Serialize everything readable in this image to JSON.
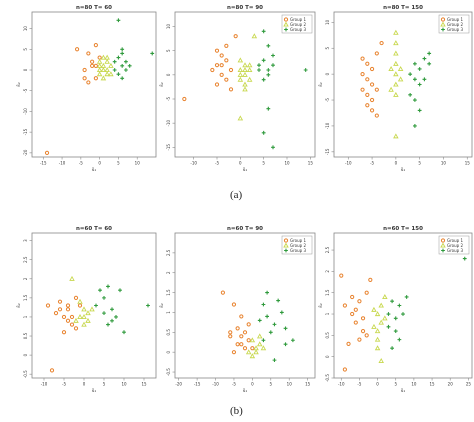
{
  "colors": {
    "group1": "#e8832f",
    "group2": "#c8d84e",
    "group3": "#2f9a3c",
    "frame": "#888888",
    "text": "#333333"
  },
  "captions": {
    "a": "(a)",
    "b": "(b)"
  },
  "legend_labels": [
    "Group 1",
    "Group 2",
    "Group 3"
  ],
  "chart_data": [
    {
      "type": "scatter",
      "title": "n=80 T= 60",
      "xlabel": "ŝ₁",
      "ylabel": "ŝ₂",
      "xlim": [
        -18,
        15
      ],
      "ylim": [
        -21,
        14
      ],
      "xticks": [
        -15,
        -10,
        -5,
        0,
        5,
        10
      ],
      "yticks": [
        -20,
        -15,
        -10,
        -5,
        0,
        5,
        10
      ],
      "legend": "none",
      "series": [
        {
          "name": "Group 1",
          "points": [
            [
              -6,
              5
            ],
            [
              -3,
              4
            ],
            [
              -1,
              6
            ],
            [
              -2,
              2
            ],
            [
              -4,
              0
            ],
            [
              -4,
              -2
            ],
            [
              -1,
              -2
            ],
            [
              -2,
              1
            ],
            [
              0,
              3
            ],
            [
              -3,
              -3
            ],
            [
              -1,
              1
            ],
            [
              -14,
              -20
            ]
          ]
        },
        {
          "name": "Group 2",
          "points": [
            [
              0,
              2
            ],
            [
              0,
              0
            ],
            [
              0,
              -1
            ],
            [
              1,
              3
            ],
            [
              1,
              1
            ],
            [
              2,
              0
            ],
            [
              2,
              -1
            ],
            [
              1,
              -2
            ],
            [
              2,
              2
            ],
            [
              3,
              1
            ],
            [
              1,
              0
            ],
            [
              0,
              1
            ],
            [
              3,
              -1
            ],
            [
              2,
              3
            ]
          ]
        },
        {
          "name": "Group 3",
          "points": [
            [
              4,
              2
            ],
            [
              5,
              3
            ],
            [
              6,
              1
            ],
            [
              7,
              2
            ],
            [
              5,
              -1
            ],
            [
              6,
              -2
            ],
            [
              7,
              0
            ],
            [
              8,
              1
            ],
            [
              4,
              0
            ],
            [
              6,
              4
            ],
            [
              5,
              12
            ],
            [
              14,
              4
            ],
            [
              6,
              5
            ]
          ]
        }
      ]
    },
    {
      "type": "scatter",
      "title": "n=80 T= 90",
      "xlabel": "ŝ₁",
      "ylabel": "ŝ₂",
      "xlim": [
        -14,
        16
      ],
      "ylim": [
        -17,
        13
      ],
      "xticks": [
        -10,
        -5,
        0,
        5,
        10,
        15
      ],
      "yticks": [
        -15,
        -10,
        -5,
        0,
        5,
        10
      ],
      "legend": "top-right",
      "series": [
        {
          "name": "Group 1",
          "points": [
            [
              -5,
              5
            ],
            [
              -4,
              4
            ],
            [
              -3,
              3
            ],
            [
              -5,
              2
            ],
            [
              -6,
              1
            ],
            [
              -4,
              0
            ],
            [
              -2,
              1
            ],
            [
              -3,
              -1
            ],
            [
              -5,
              -2
            ],
            [
              -2,
              -3
            ],
            [
              -3,
              6
            ],
            [
              -12,
              -5
            ],
            [
              -1,
              8
            ],
            [
              -4,
              2
            ]
          ]
        },
        {
          "name": "Group 2",
          "points": [
            [
              0,
              1
            ],
            [
              1,
              0
            ],
            [
              0,
              -1
            ],
            [
              1,
              2
            ],
            [
              2,
              1
            ],
            [
              1,
              -2
            ],
            [
              0,
              3
            ],
            [
              2,
              -1
            ],
            [
              1,
              1
            ],
            [
              0,
              0
            ],
            [
              2,
              2
            ],
            [
              1,
              -3
            ],
            [
              3,
              8
            ],
            [
              0,
              -9
            ]
          ]
        },
        {
          "name": "Group 3",
          "points": [
            [
              4,
              2
            ],
            [
              5,
              3
            ],
            [
              6,
              1
            ],
            [
              7,
              2
            ],
            [
              5,
              -1
            ],
            [
              6,
              0
            ],
            [
              4,
              1
            ],
            [
              7,
              4
            ],
            [
              6,
              6
            ],
            [
              5,
              9
            ],
            [
              14,
              1
            ],
            [
              7,
              -15
            ],
            [
              5,
              -12
            ],
            [
              6,
              -7
            ]
          ]
        }
      ]
    },
    {
      "type": "scatter",
      "title": "n=80 T= 150",
      "xlabel": "ŝ₁",
      "ylabel": "ŝ₂",
      "xlim": [
        -13,
        16
      ],
      "ylim": [
        -16,
        12
      ],
      "xticks": [
        -10,
        -5,
        0,
        5,
        10,
        15
      ],
      "yticks": [
        -15,
        -10,
        -5,
        0,
        5,
        10
      ],
      "legend": "top-right",
      "series": [
        {
          "name": "Group 1",
          "points": [
            [
              -7,
              3
            ],
            [
              -6,
              2
            ],
            [
              -5,
              1
            ],
            [
              -7,
              0
            ],
            [
              -6,
              -1
            ],
            [
              -5,
              -2
            ],
            [
              -4,
              -3
            ],
            [
              -6,
              -4
            ],
            [
              -5,
              -5
            ],
            [
              -7,
              -3
            ],
            [
              -4,
              4
            ],
            [
              -5,
              -7
            ],
            [
              -4,
              -8
            ],
            [
              -3,
              6
            ],
            [
              -6,
              -6
            ]
          ]
        },
        {
          "name": "Group 2",
          "points": [
            [
              0,
              0
            ],
            [
              0,
              2
            ],
            [
              0,
              4
            ],
            [
              0,
              -2
            ],
            [
              0,
              -4
            ],
            [
              -1,
              1
            ],
            [
              1,
              -1
            ],
            [
              0,
              6
            ],
            [
              0,
              8
            ],
            [
              1,
              1
            ],
            [
              0,
              -12
            ],
            [
              -1,
              -3
            ]
          ]
        },
        {
          "name": "Group 3",
          "points": [
            [
              3,
              0
            ],
            [
              4,
              2
            ],
            [
              5,
              1
            ],
            [
              6,
              3
            ],
            [
              7,
              2
            ],
            [
              4,
              -1
            ],
            [
              5,
              -2
            ],
            [
              6,
              -1
            ],
            [
              3,
              -4
            ],
            [
              4,
              -5
            ],
            [
              7,
              4
            ],
            [
              5,
              -7
            ],
            [
              4,
              -10
            ],
            [
              10,
              9
            ]
          ]
        }
      ]
    },
    {
      "type": "scatter",
      "title": "n=60 T= 60",
      "xlabel": "ŝ₁",
      "ylabel": "ŝ₂",
      "xlim": [
        -13,
        18
      ],
      "ylim": [
        -0.6,
        3.2
      ],
      "xticks": [
        -10,
        -5,
        0,
        5,
        10,
        15
      ],
      "yticks": [
        -0.5,
        0.0,
        0.5,
        1.0,
        1.5,
        2.0,
        2.5,
        3.0
      ],
      "legend": "none",
      "series": [
        {
          "name": "Group 1",
          "points": [
            [
              -9,
              1.3
            ],
            [
              -7,
              1.1
            ],
            [
              -6,
              1.4
            ],
            [
              -5,
              1.0
            ],
            [
              -4,
              1.2
            ],
            [
              -3,
              0.8
            ],
            [
              -5,
              0.6
            ],
            [
              -2,
              1.5
            ],
            [
              -4,
              1.3
            ],
            [
              -6,
              1.2
            ],
            [
              -8,
              -0.4
            ],
            [
              -3,
              1.0
            ],
            [
              -2,
              0.7
            ],
            [
              -4,
              0.9
            ],
            [
              -1,
              1.3
            ]
          ]
        },
        {
          "name": "Group 2",
          "points": [
            [
              -1,
              1.0
            ],
            [
              0,
              1.2
            ],
            [
              -2,
              0.9
            ],
            [
              1,
              1.1
            ],
            [
              0,
              0.8
            ],
            [
              -1,
              1.4
            ],
            [
              1,
              0.9
            ],
            [
              0,
              1.0
            ],
            [
              -3,
              2.0
            ],
            [
              2,
              1.2
            ]
          ]
        },
        {
          "name": "Group 3",
          "points": [
            [
              3,
              1.3
            ],
            [
              4,
              1.7
            ],
            [
              5,
              1.1
            ],
            [
              6,
              0.8
            ],
            [
              7,
              1.2
            ],
            [
              5,
              1.5
            ],
            [
              8,
              1.0
            ],
            [
              9,
              1.7
            ],
            [
              16,
              1.3
            ],
            [
              10,
              0.6
            ],
            [
              7,
              0.9
            ],
            [
              6,
              1.8
            ]
          ]
        }
      ]
    },
    {
      "type": "scatter",
      "title": "n=60 T= 90",
      "xlabel": "ŝ₁",
      "ylabel": "ŝ₂",
      "xlim": [
        -21,
        17
      ],
      "ylim": [
        -0.65,
        3.0
      ],
      "xticks": [
        -20,
        -15,
        -10,
        -5,
        0,
        5,
        10,
        15
      ],
      "yticks": [
        -0.5,
        0.0,
        0.5,
        1.0,
        1.5,
        2.0,
        2.5
      ],
      "legend": "top-right",
      "series": [
        {
          "name": "Group 1",
          "points": [
            [
              -5,
              1.2
            ],
            [
              -3,
              0.9
            ],
            [
              -4,
              0.6
            ],
            [
              -2,
              0.5
            ],
            [
              -6,
              0.4
            ],
            [
              -1,
              0.3
            ],
            [
              -3,
              0.2
            ],
            [
              -5,
              0.0
            ],
            [
              -8,
              1.5
            ],
            [
              -2,
              0.1
            ],
            [
              -4,
              0.2
            ],
            [
              0,
              0.1
            ],
            [
              -6,
              0.5
            ],
            [
              -1,
              0.7
            ],
            [
              -3,
              0.4
            ]
          ]
        },
        {
          "name": "Group 2",
          "points": [
            [
              0,
              0.3
            ],
            [
              1,
              0.1
            ],
            [
              2,
              0.2
            ],
            [
              0,
              -0.1
            ],
            [
              1,
              0.0
            ],
            [
              -1,
              0.0
            ],
            [
              2,
              0.4
            ],
            [
              3,
              0.1
            ]
          ]
        },
        {
          "name": "Group 3",
          "points": [
            [
              2,
              0.8
            ],
            [
              4,
              0.9
            ],
            [
              5,
              0.5
            ],
            [
              6,
              0.7
            ],
            [
              8,
              1.0
            ],
            [
              9,
              0.6
            ],
            [
              3,
              0.3
            ],
            [
              7,
              1.3
            ],
            [
              9,
              0.2
            ],
            [
              11,
              0.3
            ],
            [
              4,
              1.5
            ],
            [
              3,
              1.2
            ],
            [
              6,
              -0.2
            ]
          ]
        }
      ]
    },
    {
      "type": "scatter",
      "title": "n=60 T= 150",
      "xlabel": "ŝ₁",
      "ylabel": "ŝ₂",
      "xlim": [
        -12,
        26
      ],
      "ylim": [
        -0.5,
        2.9
      ],
      "xticks": [
        -10,
        -5,
        0,
        5,
        10,
        15,
        20,
        25
      ],
      "yticks": [
        -0.5,
        0.0,
        0.5,
        1.0,
        1.5,
        2.0,
        2.5
      ],
      "legend": "top-right",
      "series": [
        {
          "name": "Group 1",
          "points": [
            [
              -9,
              1.2
            ],
            [
              -7,
              1.0
            ],
            [
              -6,
              0.8
            ],
            [
              -5,
              1.3
            ],
            [
              -4,
              0.6
            ],
            [
              -3,
              1.5
            ],
            [
              -5,
              0.4
            ],
            [
              -6,
              1.1
            ],
            [
              -4,
              0.9
            ],
            [
              -2,
              1.8
            ],
            [
              -10,
              1.9
            ],
            [
              -8,
              0.3
            ],
            [
              -3,
              0.5
            ],
            [
              -7,
              1.4
            ],
            [
              -9,
              -0.3
            ]
          ]
        },
        {
          "name": "Group 2",
          "points": [
            [
              0,
              1.0
            ],
            [
              1,
              0.8
            ],
            [
              0,
              0.6
            ],
            [
              2,
              0.9
            ],
            [
              -1,
              1.1
            ],
            [
              1,
              1.2
            ],
            [
              0,
              0.4
            ],
            [
              -1,
              0.7
            ],
            [
              1,
              -0.1
            ],
            [
              2,
              1.4
            ],
            [
              0,
              0.2
            ]
          ]
        },
        {
          "name": "Group 3",
          "points": [
            [
              3,
              1.0
            ],
            [
              4,
              1.3
            ],
            [
              5,
              0.9
            ],
            [
              6,
              1.2
            ],
            [
              5,
              0.6
            ],
            [
              7,
              1.0
            ],
            [
              8,
              1.4
            ],
            [
              6,
              0.4
            ],
            [
              4,
              0.2
            ],
            [
              24,
              2.3
            ],
            [
              3,
              0.7
            ]
          ]
        }
      ]
    }
  ]
}
